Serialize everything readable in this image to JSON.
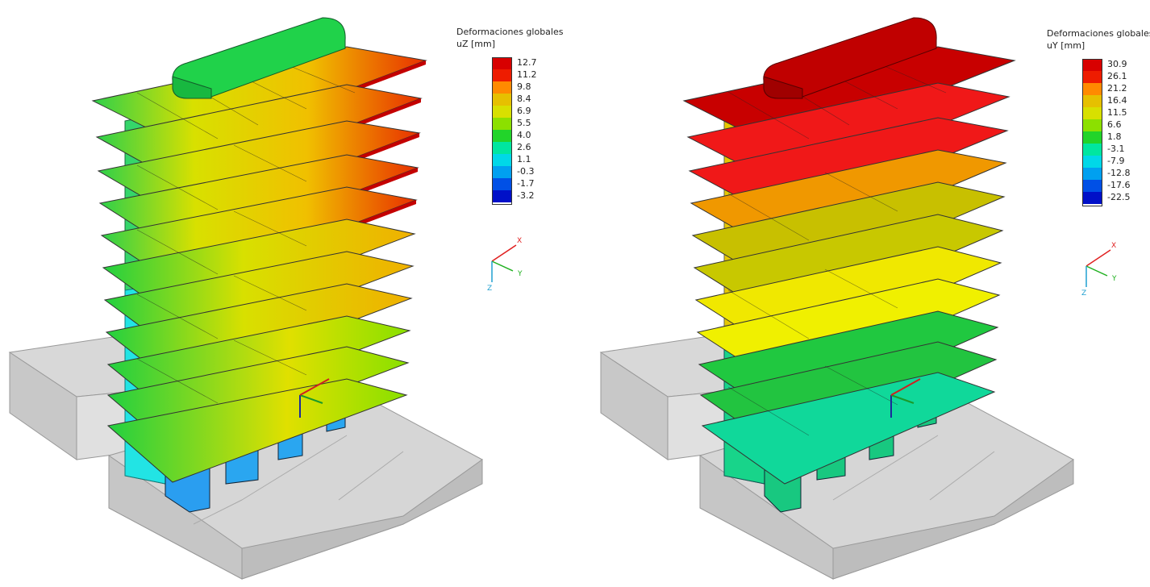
{
  "panels": [
    {
      "legend": {
        "title": "Deformaciones globales",
        "unit": "uZ [mm]",
        "ticks": [
          "12.7",
          "11.2",
          "9.8",
          "8.4",
          "6.9",
          "5.5",
          "4.0",
          "2.6",
          "1.1",
          "-0.3",
          "-1.7",
          "-3.2"
        ],
        "colors": [
          "#d80000",
          "#ee1c00",
          "#ff8a00",
          "#e6c000",
          "#d8e000",
          "#8ce000",
          "#22d42a",
          "#00e6a0",
          "#00d8e8",
          "#00a0f0",
          "#0050e6",
          "#0010c8"
        ]
      },
      "axes": {
        "x": "X",
        "y": "Y",
        "z": "Z"
      }
    },
    {
      "legend": {
        "title": "Deformaciones globales",
        "unit": "uY [mm]",
        "ticks": [
          "30.9",
          "26.1",
          "21.2",
          "16.4",
          "11.5",
          "6.6",
          "1.8",
          "-3.1",
          "-7.9",
          "-12.8",
          "-17.6",
          "-22.5"
        ],
        "colors": [
          "#d80000",
          "#ee1c00",
          "#ff8a00",
          "#e6c000",
          "#d8e000",
          "#8ce000",
          "#22d42a",
          "#00e6a0",
          "#00d8e8",
          "#00a0f0",
          "#0050e6",
          "#0010c8"
        ]
      },
      "axes": {
        "x": "X",
        "y": "Y",
        "z": "Z"
      }
    }
  ],
  "colors": {
    "ground": "#cfcfcf",
    "ground_edge": "#9a9a9a",
    "left_slab_base": "#f0c000",
    "right_top": "#cc0000",
    "right_upper": "#ff2020",
    "right_mid": "#f0a000",
    "right_olive": "#c8c000",
    "right_yellow": "#f0e800",
    "right_green": "#22c040",
    "right_teal": "#10d89a",
    "core_left": "#30d070",
    "core_left_low": "#20e0e0",
    "column_blue": "#2aa0f0"
  }
}
